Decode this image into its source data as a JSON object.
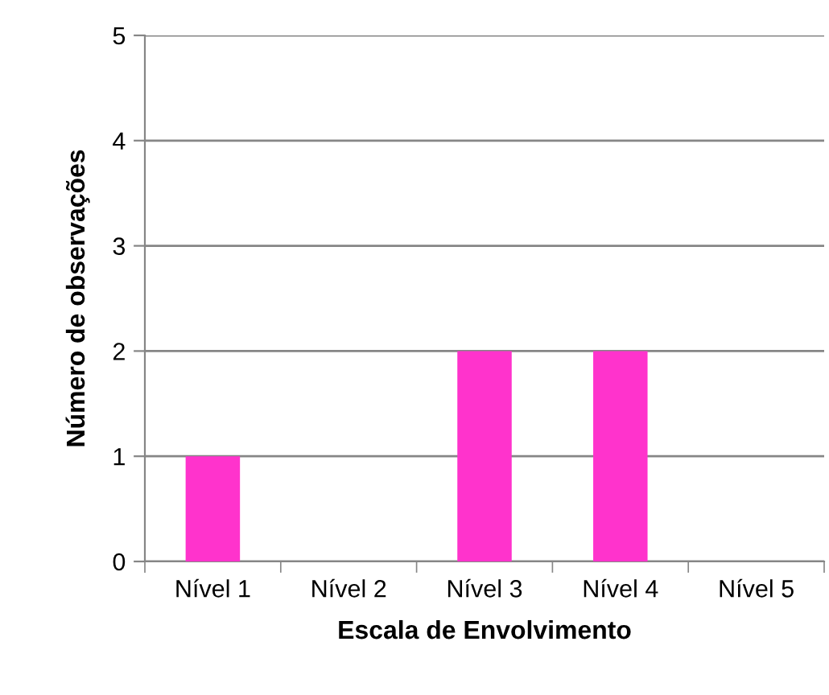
{
  "chart_data": {
    "type": "bar",
    "xlabel": "Escala de Envolvimento",
    "ylabel": "Número de observações",
    "categories": [
      "Nível 1",
      "Nível 2",
      "Nível 3",
      "Nível 4",
      "Nível 5"
    ],
    "values": [
      1,
      0,
      2,
      2,
      0
    ],
    "color": "#ff33cc",
    "ylim": [
      0,
      5
    ],
    "yticks": [
      0,
      1,
      2,
      3,
      4,
      5
    ],
    "grid": "y",
    "legend": false
  }
}
